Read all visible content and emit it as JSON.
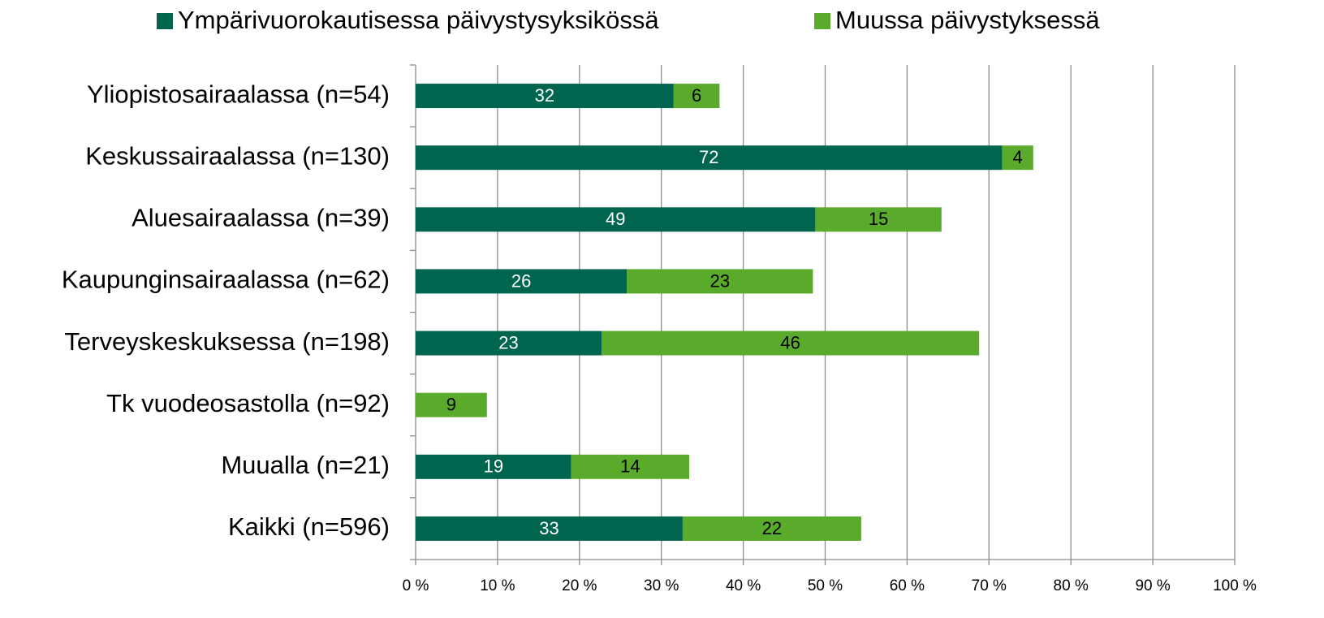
{
  "chart_data": {
    "type": "stacked-bar-horizontal",
    "categories": [
      "Yliopistosairaalassa (n=54)",
      "Keskussairaalassa (n=130)",
      "Aluesairaalassa (n=39)",
      "Kaupunginsairaalassa (n=62)",
      "Terveyskeskuksessa (n=198)",
      "Tk vuodeosastolla (n=92)",
      "Muualla (n=21)",
      "Kaikki (n=596)"
    ],
    "series": [
      {
        "name": "Ympärivuorokautisessa päivystysyksikössä",
        "color": "#00654f",
        "values": [
          31.5,
          71.6,
          48.8,
          25.8,
          22.7,
          0,
          19.0,
          32.6
        ],
        "value_labels": [
          "32",
          "72",
          "49",
          "26",
          "23",
          null,
          "19",
          "33"
        ]
      },
      {
        "name": "Muussa päivystyksessä",
        "color": "#5aab2b",
        "values": [
          5.6,
          3.8,
          15.4,
          22.7,
          46.1,
          8.7,
          14.4,
          21.8
        ],
        "value_labels": [
          "6",
          "4",
          "15",
          "23",
          "46",
          "9",
          "14",
          "22"
        ]
      }
    ],
    "xlim": [
      0,
      100
    ],
    "xticks": [
      {
        "value": 0,
        "label": "0 %"
      },
      {
        "value": 10,
        "label": "10 %"
      },
      {
        "value": 20,
        "label": "20 %"
      },
      {
        "value": 30,
        "label": "30 %"
      },
      {
        "value": 40,
        "label": "40 %"
      },
      {
        "value": 50,
        "label": "50 %"
      },
      {
        "value": 60,
        "label": "60 %"
      },
      {
        "value": 70,
        "label": "70 %"
      },
      {
        "value": 80,
        "label": "80 %"
      },
      {
        "value": 90,
        "label": "90 %"
      },
      {
        "value": 100,
        "label": "100 %"
      }
    ],
    "grid": true,
    "legend": "top"
  }
}
